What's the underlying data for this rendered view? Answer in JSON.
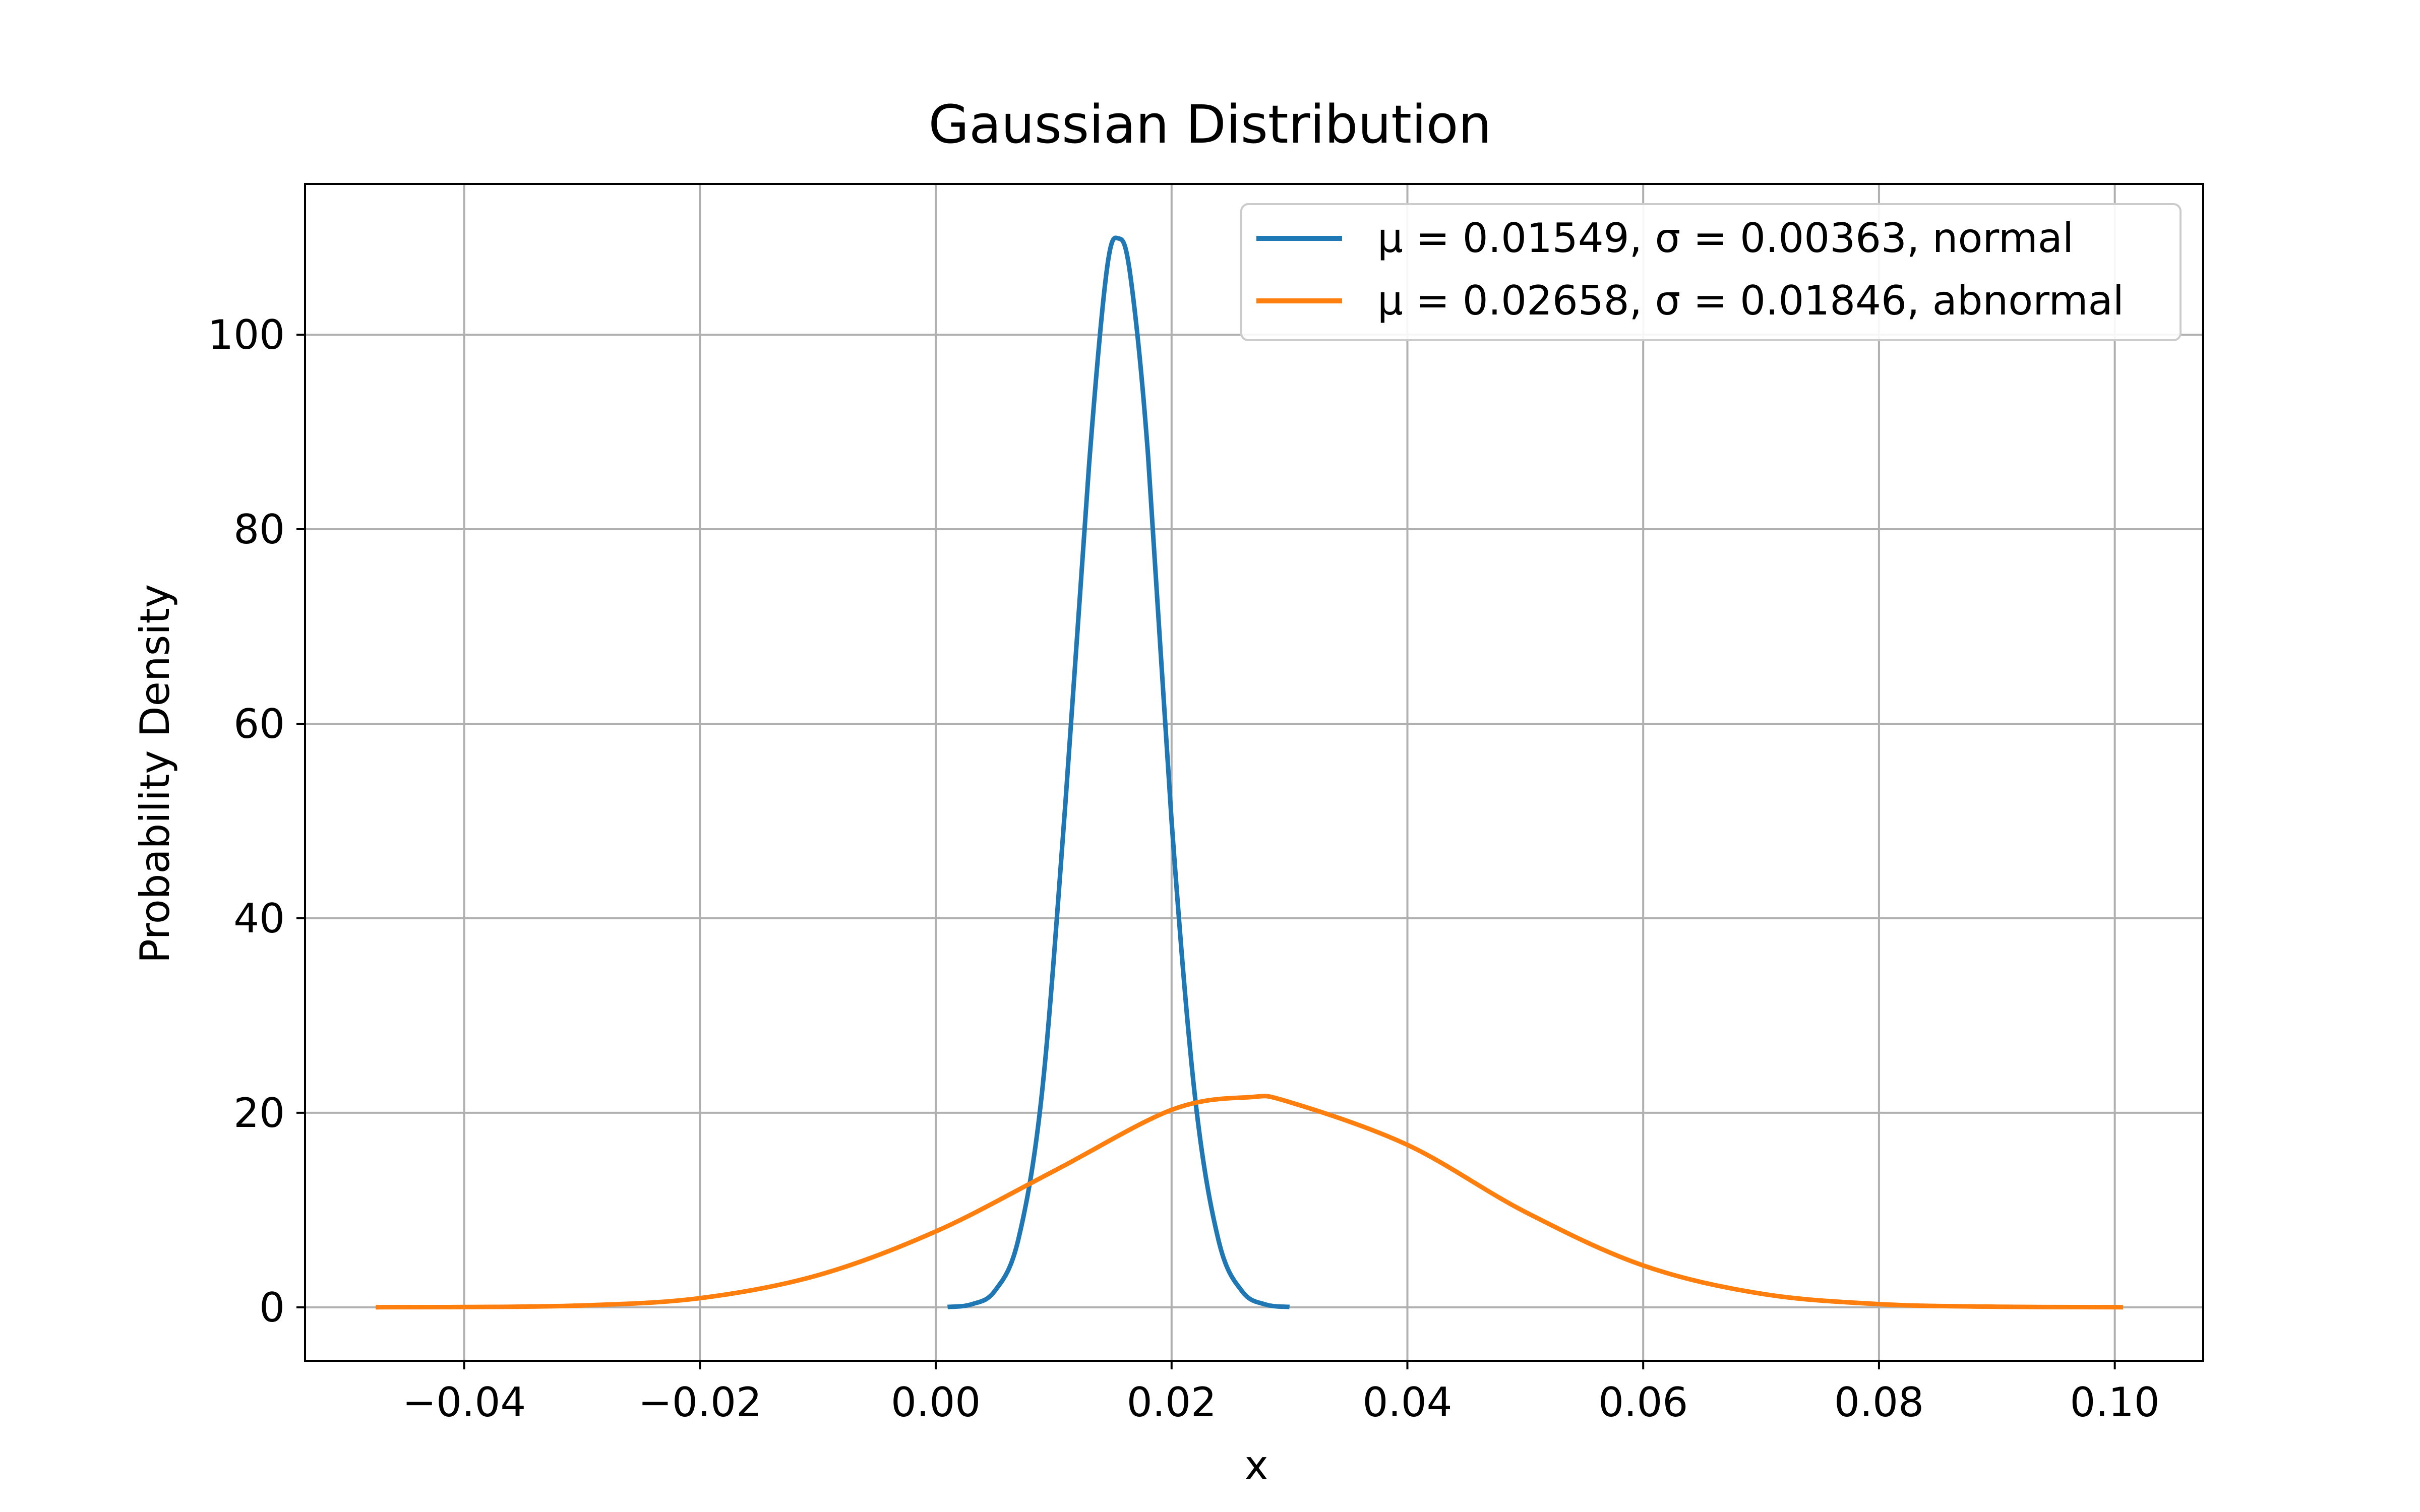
{
  "chart_data": {
    "type": "line",
    "title": "Gaussian Distribution",
    "xlabel": "x",
    "ylabel": "Probability Density",
    "xlim": [
      -0.0535,
      0.1075
    ],
    "ylim": [
      -5.5,
      115.5
    ],
    "x_ticks": [
      -0.04,
      -0.02,
      0.0,
      0.02,
      0.04,
      0.06,
      0.08,
      0.1
    ],
    "x_tick_labels": [
      "−0.04",
      "−0.02",
      "0.00",
      "0.02",
      "0.04",
      "0.06",
      "0.08",
      "0.10"
    ],
    "y_ticks": [
      0,
      20,
      40,
      60,
      80,
      100
    ],
    "y_tick_labels": [
      "0",
      "20",
      "40",
      "60",
      "80",
      "100"
    ],
    "grid": true,
    "legend_position": "top-right",
    "series": [
      {
        "name": "μ = 0.01549, σ = 0.00363, normal",
        "color": "#1f77b4",
        "x": [
          0.001,
          0.003,
          0.005,
          0.007,
          0.009,
          0.011,
          0.013,
          0.0145,
          0.0155,
          0.0165,
          0.018,
          0.02,
          0.022,
          0.024,
          0.026,
          0.028,
          0.03
        ],
        "y": [
          0.04,
          0.3,
          1.67,
          6.97,
          22.0,
          51.9,
          86.6,
          106.6,
          109.9,
          106.1,
          87.7,
          50.0,
          21.5,
          6.81,
          1.62,
          0.28,
          0.04
        ]
      },
      {
        "name": "μ = 0.02658, σ = 0.01846, abnormal",
        "color": "#ff7f0e",
        "x": [
          -0.0475,
          -0.04,
          -0.03,
          -0.02,
          -0.01,
          0.0,
          0.01,
          0.02,
          0.0266,
          0.03,
          0.04,
          0.05,
          0.06,
          0.07,
          0.08,
          0.09,
          0.1007
        ],
        "y": [
          0.007,
          0.03,
          0.19,
          0.94,
          3.3,
          7.8,
          14.0,
          20.3,
          21.6,
          21.1,
          16.7,
          9.8,
          4.3,
          1.4,
          0.33,
          0.06,
          0.006
        ]
      }
    ]
  }
}
